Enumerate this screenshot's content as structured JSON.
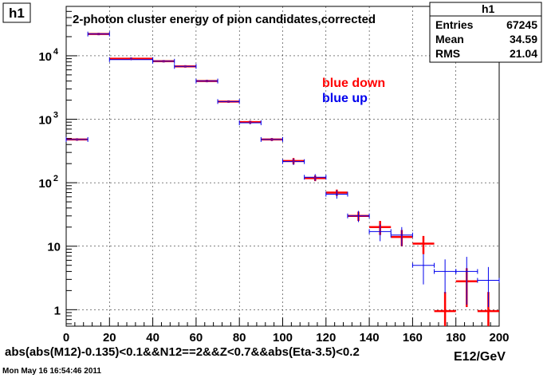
{
  "canvas_tag": "h1",
  "footer_timestamp": "Mon May 16 16:54:46 2011",
  "stats_box": {
    "title": "h1",
    "rows": [
      {
        "label": "Entries",
        "value": "67245"
      },
      {
        "label": "Mean",
        "value": "34.59"
      },
      {
        "label": "RMS",
        "value": "21.04"
      }
    ]
  },
  "colors": {
    "red": "#ff0000",
    "blue": "#0000ee",
    "purple": "#800080",
    "frame": "#000000"
  },
  "chart_data": {
    "type": "scatter",
    "title": "2-photon cluster energy of pion candidates,corrected",
    "xlabel": "E12/GeV",
    "selection_text": "abs(abs(M12)-0.135)<0.1&&N12==2&&Z<0.7&&abs(Eta-3.5)<0.2",
    "xlim": [
      0,
      200
    ],
    "ylim": [
      0.55,
      60000
    ],
    "y_scale": "log",
    "x_ticks": [
      "0",
      "20",
      "40",
      "60",
      "80",
      "100",
      "120",
      "140",
      "160",
      "180",
      "200"
    ],
    "y_ticks": [
      {
        "value": 1,
        "base": "1",
        "exp": ""
      },
      {
        "value": 10,
        "base": "10",
        "exp": ""
      },
      {
        "value": 100,
        "base": "10",
        "exp": "2"
      },
      {
        "value": 1000,
        "base": "10",
        "exp": "3"
      },
      {
        "value": 10000,
        "base": "10",
        "exp": "4"
      }
    ],
    "grid": true,
    "legend": [
      {
        "name": "blue down",
        "color": "#ff0000"
      },
      {
        "name": "blue up",
        "color": "#0000ee"
      }
    ],
    "series": [
      {
        "name": "blue down",
        "color": "#ff0000",
        "points": [
          {
            "x": 5,
            "xerr": 5,
            "y": 480,
            "yerr": 20
          },
          {
            "x": 15,
            "xerr": 5,
            "y": 22000,
            "yerr": 300
          },
          {
            "x": 30,
            "xerr": 10,
            "y": 9000,
            "yerr": 200
          },
          {
            "x": 45,
            "xerr": 5,
            "y": 8200,
            "yerr": 200
          },
          {
            "x": 55,
            "xerr": 5,
            "y": 6800,
            "yerr": 150
          },
          {
            "x": 65,
            "xerr": 5,
            "y": 4000,
            "yerr": 100
          },
          {
            "x": 75,
            "xerr": 5,
            "y": 1900,
            "yerr": 60
          },
          {
            "x": 85,
            "xerr": 5,
            "y": 900,
            "yerr": 50
          },
          {
            "x": 95,
            "xerr": 5,
            "y": 480,
            "yerr": 25
          },
          {
            "x": 105,
            "xerr": 5,
            "y": 220,
            "yerr": 25
          },
          {
            "x": 115,
            "xerr": 5,
            "y": 118,
            "yerr": 12
          },
          {
            "x": 125,
            "xerr": 5,
            "y": 70,
            "yerr": 8
          },
          {
            "x": 135,
            "xerr": 5,
            "y": 30,
            "yerr": 5
          },
          {
            "x": 145,
            "xerr": 5,
            "y": 20,
            "yerr": 5
          },
          {
            "x": 155,
            "xerr": 5,
            "y": 14,
            "yerr": 4
          },
          {
            "x": 165,
            "xerr": 5,
            "y": 11,
            "yerr": 3.5
          },
          {
            "x": 175,
            "xerr": 5,
            "y": 0.95,
            "yerr": 0.95
          },
          {
            "x": 185,
            "xerr": 5,
            "y": 2.8,
            "yerr": 1.7
          },
          {
            "x": 195,
            "xerr": 5,
            "y": 0.95,
            "yerr": 0.95
          }
        ]
      },
      {
        "name": "blue up",
        "color": "#0000ee",
        "points": [
          {
            "x": 5,
            "xerr": 5,
            "y": 480,
            "yerr": 20
          },
          {
            "x": 15,
            "xerr": 5,
            "y": 22000,
            "yerr": 300
          },
          {
            "x": 30,
            "xerr": 10,
            "y": 8700,
            "yerr": 200
          },
          {
            "x": 45,
            "xerr": 5,
            "y": 8200,
            "yerr": 200
          },
          {
            "x": 55,
            "xerr": 5,
            "y": 6800,
            "yerr": 150
          },
          {
            "x": 65,
            "xerr": 5,
            "y": 4000,
            "yerr": 100
          },
          {
            "x": 75,
            "xerr": 5,
            "y": 1900,
            "yerr": 60
          },
          {
            "x": 85,
            "xerr": 5,
            "y": 880,
            "yerr": 50
          },
          {
            "x": 95,
            "xerr": 5,
            "y": 480,
            "yerr": 25
          },
          {
            "x": 105,
            "xerr": 5,
            "y": 215,
            "yerr": 25
          },
          {
            "x": 115,
            "xerr": 5,
            "y": 122,
            "yerr": 15
          },
          {
            "x": 125,
            "xerr": 5,
            "y": 66,
            "yerr": 10
          },
          {
            "x": 135,
            "xerr": 5,
            "y": 30,
            "yerr": 6
          },
          {
            "x": 145,
            "xerr": 5,
            "y": 17,
            "yerr": 5
          },
          {
            "x": 155,
            "xerr": 5,
            "y": 15,
            "yerr": 5
          },
          {
            "x": 165,
            "xerr": 5,
            "y": 5,
            "yerr": 2.5
          },
          {
            "x": 175,
            "xerr": 5,
            "y": 4,
            "yerr": 2.2
          },
          {
            "x": 185,
            "xerr": 5,
            "y": 4,
            "yerr": 2.8
          },
          {
            "x": 195,
            "xerr": 5,
            "y": 2.9,
            "yerr": 1.8
          }
        ]
      }
    ]
  }
}
